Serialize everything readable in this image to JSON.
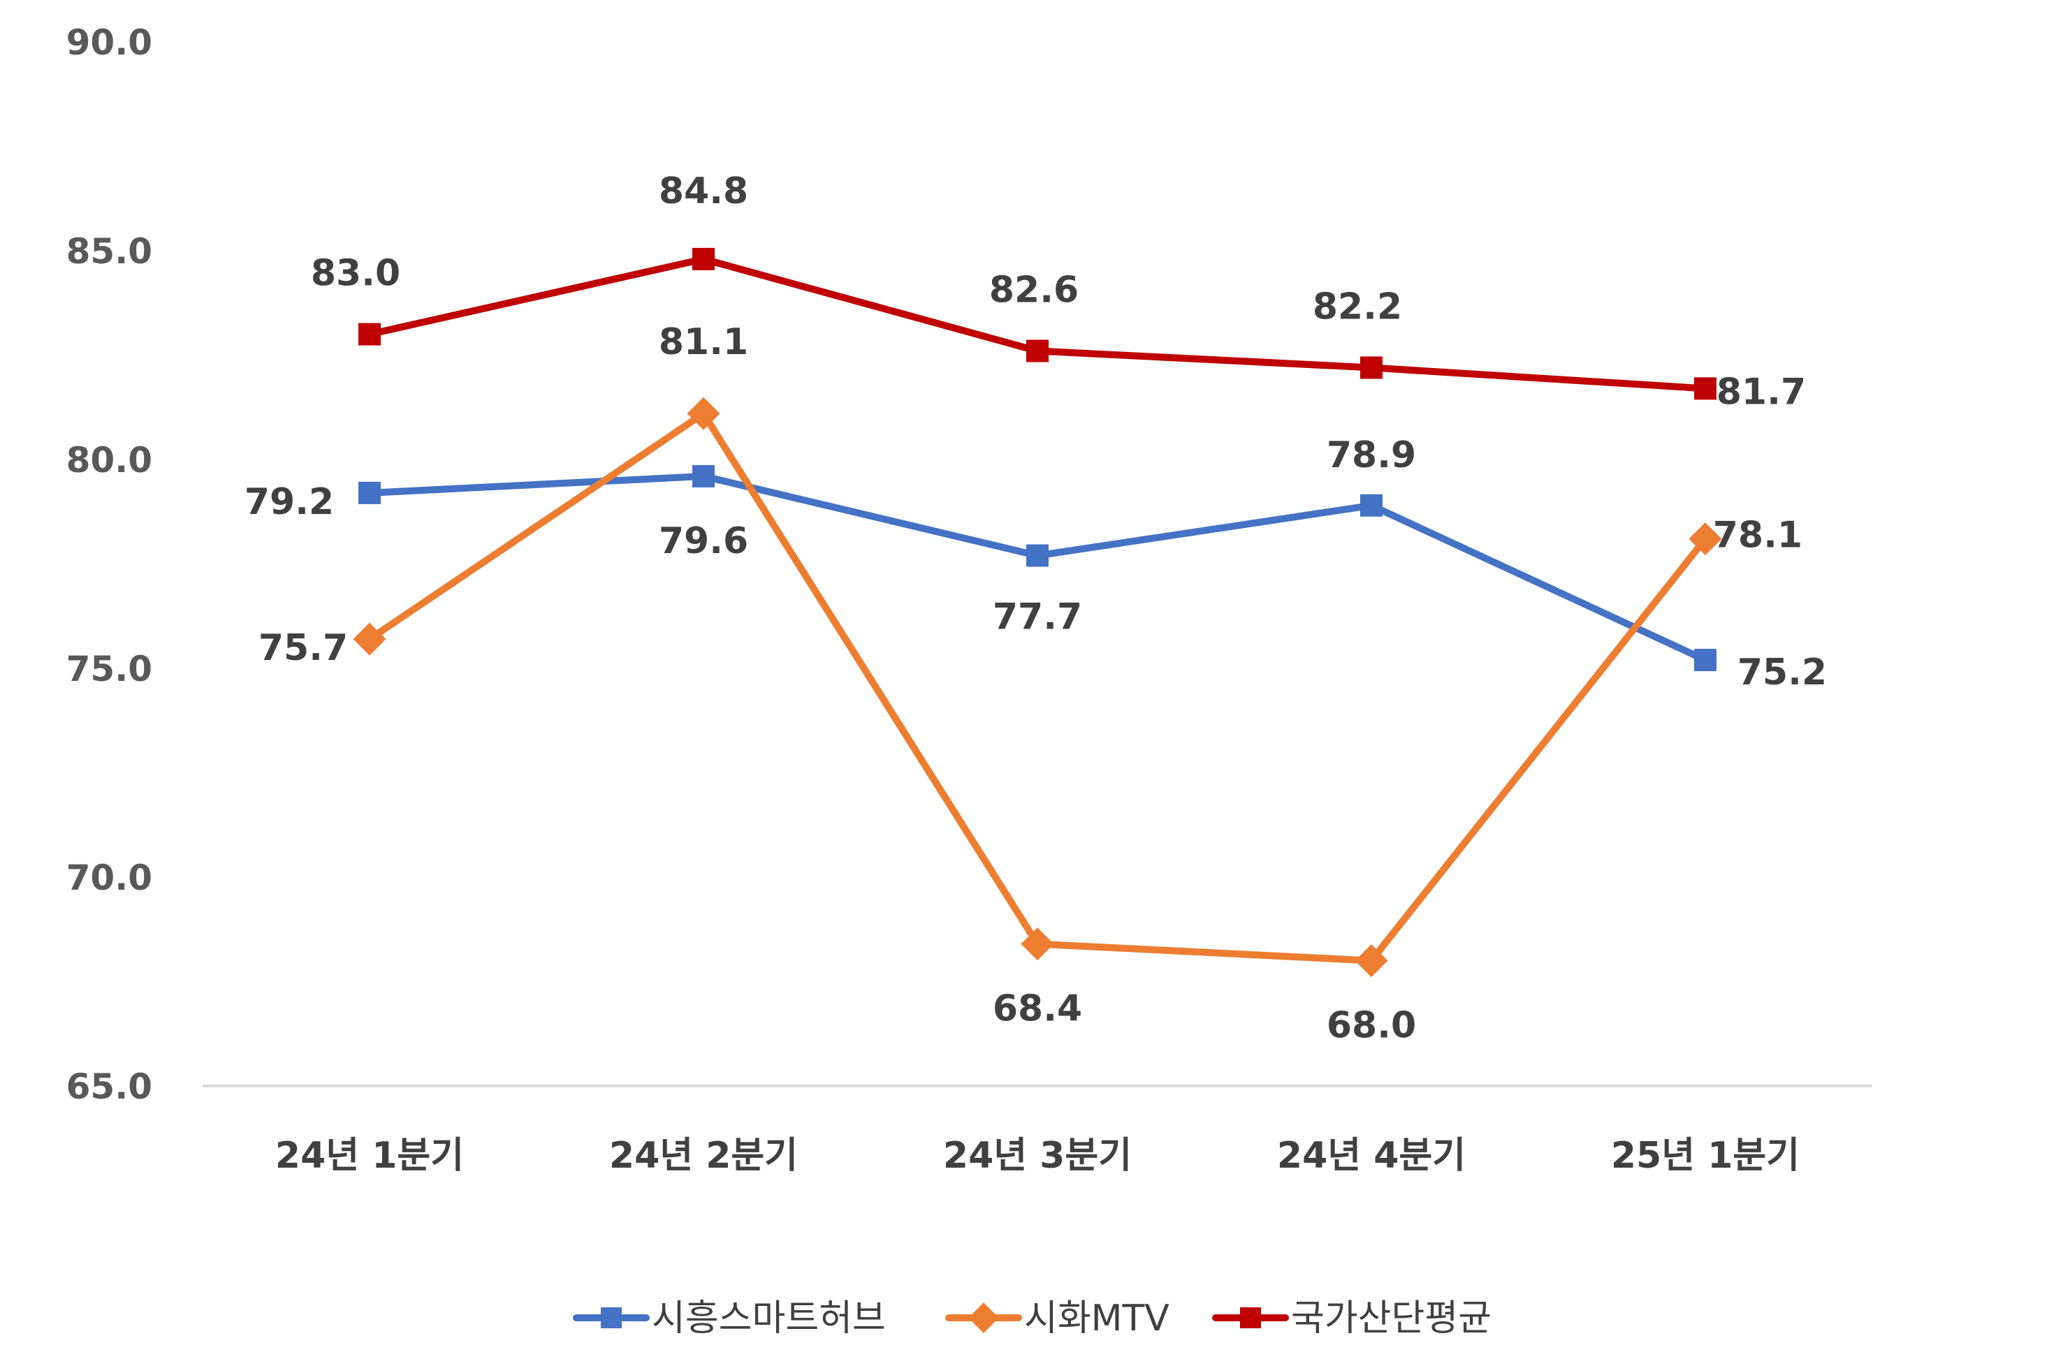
{
  "chart_data": {
    "type": "line",
    "title": "",
    "xlabel": "",
    "ylabel": "",
    "categories": [
      "24년 1분기",
      "24년 2분기",
      "24년 3분기",
      "24년 4분기",
      "25년 1분기"
    ],
    "ylim": [
      65,
      90
    ],
    "yticks": [
      65,
      70,
      75,
      80,
      85,
      90
    ],
    "ytick_labels": [
      "65.0",
      "70.0",
      "75.0",
      "80.0",
      "85.0",
      "90.0"
    ],
    "grid": false,
    "legend_position": "bottom",
    "series": [
      {
        "name": "시흥스마트허브",
        "values": [
          79.2,
          79.6,
          77.7,
          78.9,
          75.2
        ],
        "labels": [
          "79.2",
          "79.6",
          "77.7",
          "78.9",
          "75.2"
        ],
        "color": "#4472C4",
        "marker": "square"
      },
      {
        "name": "시화MTV",
        "values": [
          75.7,
          81.1,
          68.4,
          68.0,
          78.1
        ],
        "labels": [
          "75.7",
          "81.1",
          "68.4",
          "68.0",
          "78.1"
        ],
        "color": "#ED7D31",
        "marker": "diamond"
      },
      {
        "name": "국가산단평균",
        "values": [
          83.0,
          84.8,
          82.6,
          82.2,
          81.7
        ],
        "labels": [
          "83.0",
          "84.8",
          "82.6",
          "82.2",
          "81.7"
        ],
        "color": "#C00000",
        "marker": "square"
      }
    ]
  }
}
